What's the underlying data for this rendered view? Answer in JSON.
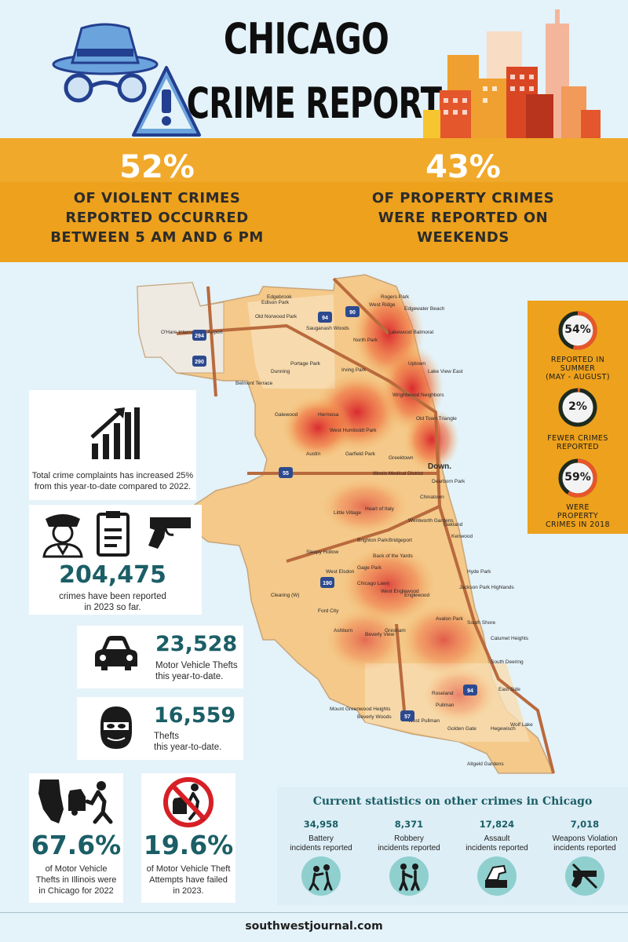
{
  "header": {
    "title_line1": "CHICAGO",
    "title_line2": "CRIME REPORT"
  },
  "band": {
    "left_pct": "52%",
    "left_text": [
      "OF VIOLENT CRIMES",
      "REPORTED OCCURRED",
      "BETWEEN 5 AM AND 6 PM"
    ],
    "right_pct": "43%",
    "right_text": [
      "OF PROPERTY CRIMES",
      "WERE REPORTED ON",
      "WEEKENDS"
    ]
  },
  "map": {
    "labels": [
      "Edgebrook",
      "Edison Park",
      "Old Norwood Park",
      "O'Hare International Airport",
      "Rogers Park",
      "Edgewater Beach",
      "West Ridge",
      "Sauganash Woods",
      "North Park",
      "Lakewood Balmoral",
      "Uptown",
      "Irving Park",
      "Dunning",
      "Portage Park",
      "Lake View East",
      "Wrightwood Neighbors",
      "Belmont Terrace",
      "Galewood",
      "Hermosa",
      "West Humboldt Park",
      "Old Town Triangle",
      "Greektown",
      "Down.",
      "Austin",
      "Garfield Park",
      "Illinois Medical District",
      "Dearborn Park",
      "Chinatown",
      "Little Village",
      "Heart of Italy",
      "Bridgeport",
      "Wentworth Gardens",
      "Kenwood",
      "Oakland",
      "Sleepy Hollow",
      "Brighton Park",
      "Back of the Yards",
      "Gage Park",
      "West Elsdon",
      "Chicago Lawn",
      "West Englewood",
      "Englewood",
      "Hyde Park",
      "Jackson Park Highlands",
      "South Shore",
      "Clearing (W)",
      "Ford City",
      "Ashburn",
      "Beverly View",
      "Gresham",
      "Avalon Park",
      "Calumet Heights",
      "South Deering",
      "Roseland",
      "Pullman",
      "East Side",
      "Mount Greenwood Heights",
      "Beverly Woods",
      "West Pullman",
      "Golden Gate",
      "Hegewisch",
      "Altgeld Gardens",
      "Wolf Lake"
    ],
    "roads": [
      "94",
      "90",
      "190",
      "294",
      "290",
      "55",
      "57",
      "94"
    ]
  },
  "right_panel": {
    "items": [
      {
        "pct": "54%",
        "text": [
          "REPORTED IN",
          "SUMMER",
          "(MAY - AUGUST)"
        ],
        "fraction": 0.54
      },
      {
        "pct": "2%",
        "text": [
          "FEWER CRIMES",
          "REPORTED"
        ],
        "fraction": 0.02
      },
      {
        "pct": "59%",
        "text": [
          "WERE",
          "PROPERTY",
          "CRIMES IN 2018"
        ],
        "fraction": 0.59
      }
    ],
    "ring_color": "#e9552a",
    "ring_track": "#1e2a1e"
  },
  "cards": {
    "trend": {
      "text_line1": "Total crime complaints has increased 25%",
      "text_line2": "from this year-to-date compared to 2022.",
      "icon": "bar-chart-up-icon"
    },
    "total": {
      "number": "204,475",
      "text_line1": "crimes have been reported",
      "text_line2": "in 2023 so far.",
      "icons": [
        "police-officer-icon",
        "clipboard-icon",
        "handgun-icon"
      ]
    },
    "vehicle": {
      "number": "23,528",
      "text_line1": "Motor Vehicle Thefts",
      "text_line2": "this year-to-date.",
      "icon": "car-icon"
    },
    "thefts": {
      "number": "16,559",
      "text_line1": "Thefts",
      "text_line2": "this year-to-date.",
      "icon": "masked-thief-icon"
    },
    "illinois": {
      "number": "67.6%",
      "text_line1": "of Motor Vehicle",
      "text_line2": "Thefts in Illinois were",
      "text_line3": "in Chicago for 2022",
      "icon": "illinois-car-theft-icon"
    },
    "failed": {
      "number": "19.6%",
      "text_line1": "of Motor Vehicle Theft",
      "text_line2": "Attempts have failed",
      "text_line3": "in 2023.",
      "icon": "no-car-theft-icon"
    }
  },
  "stats": {
    "title": "Current statistics on other crimes in Chicago",
    "items": [
      {
        "number": "34,958",
        "label_line1": "Battery",
        "label_line2": "incidents reported",
        "icon": "battery-assault-icon"
      },
      {
        "number": "8,371",
        "label_line1": "Robbery",
        "label_line2": "incidents reported",
        "icon": "robbery-icon"
      },
      {
        "number": "17,824",
        "label_line1": "Assault",
        "label_line2": "incidents reported",
        "icon": "assault-icon"
      },
      {
        "number": "7,018",
        "label_line1": "Weapons Violation",
        "label_line2": "incidents reported",
        "icon": "no-weapons-icon"
      }
    ]
  },
  "footer": {
    "site": "southwestjournal.com"
  },
  "colors": {
    "background": "#e4f2f9",
    "orange": "#eda11c",
    "teal": "#1b5e66",
    "map_orange": "#f2b55a",
    "map_red": "#d8232a"
  }
}
